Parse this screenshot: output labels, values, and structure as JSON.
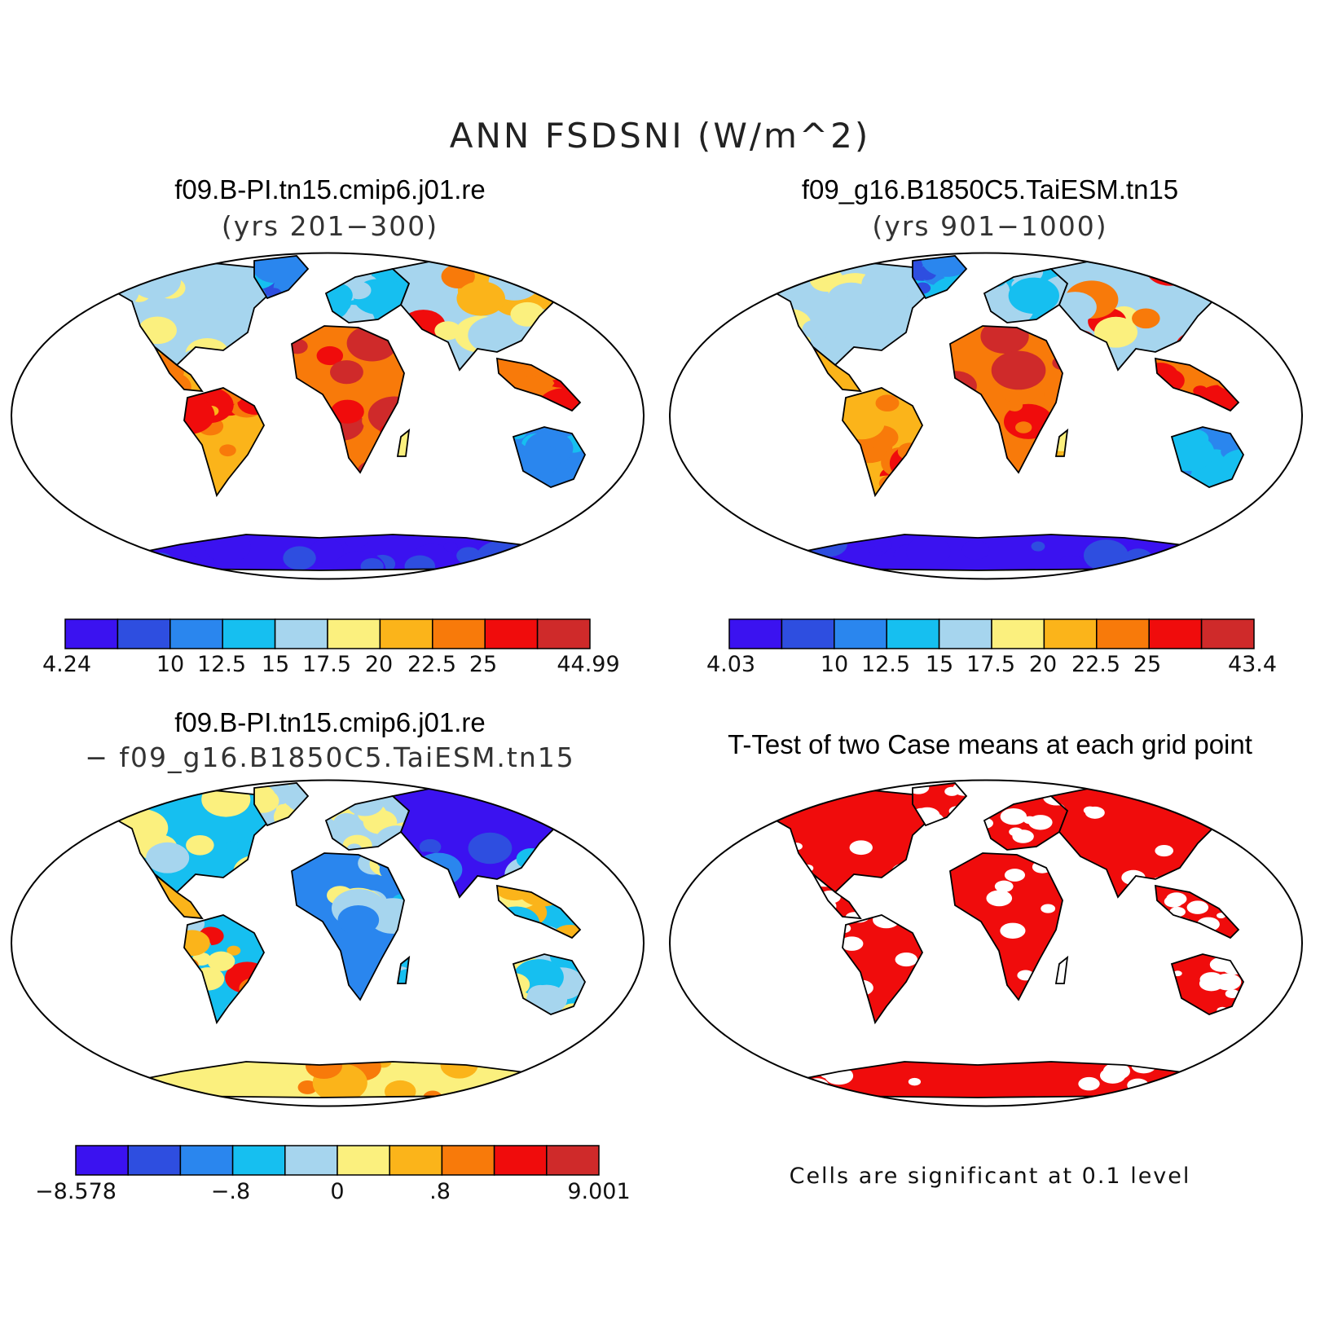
{
  "title": "ANN FSDSNI (W/m^2)",
  "panels": {
    "case1": {
      "title": "f09.B-PI.tn15.cmip6.j01.re",
      "subtitle": "(yrs 201−300)"
    },
    "case2": {
      "title": "f09_g16.B1850C5.TaiESM.tn15",
      "subtitle": "(yrs 901−1000)"
    },
    "diff": {
      "title": "f09.B-PI.tn15.cmip6.j01.re",
      "subtitle": "− f09_g16.B1850C5.TaiESM.tn15"
    },
    "ttest": {
      "title": "T-Test of two Case means at each grid point",
      "note": "Cells are significant at 0.1 level"
    }
  },
  "colorbars": {
    "case1": {
      "labels": [
        "4.24",
        "10",
        "12.5",
        "15",
        "17.5",
        "20",
        "22.5",
        "25",
        "44.99"
      ]
    },
    "case2": {
      "labels": [
        "4.03",
        "10",
        "12.5",
        "15",
        "17.5",
        "20",
        "22.5",
        "25",
        "43.4"
      ]
    },
    "diff": {
      "labels": [
        "−8.578",
        "−.8",
        "0",
        ".8",
        "9.001"
      ]
    }
  },
  "colors": {
    "scale": [
      "#3b12f0",
      "#2e4ee0",
      "#2a86ee",
      "#16bff0",
      "#a6d5ee",
      "#fbf07e",
      "#fbb41a",
      "#f87a0a",
      "#f00c0c",
      "#cf2a2a"
    ],
    "significant": "#f00c0c",
    "coastline": "#000000"
  }
}
